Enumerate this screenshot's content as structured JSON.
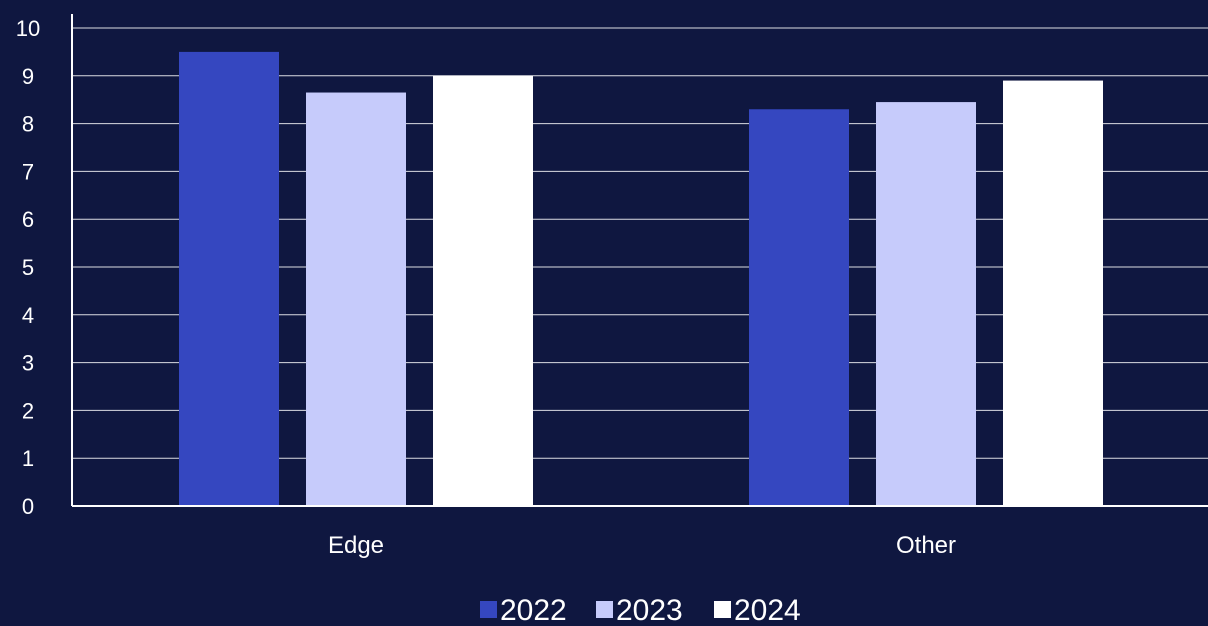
{
  "chart_data": {
    "type": "bar",
    "categories": [
      "Edge",
      "Other"
    ],
    "series": [
      {
        "name": "2022",
        "values": [
          9.5,
          8.3
        ]
      },
      {
        "name": "2023",
        "values": [
          8.65,
          8.45
        ]
      },
      {
        "name": "2024",
        "values": [
          9.0,
          8.9
        ]
      }
    ],
    "title": "",
    "xlabel": "",
    "ylabel": "",
    "ylim": [
      0,
      10
    ],
    "yticks": [
      0,
      1,
      2,
      3,
      4,
      5,
      6,
      7,
      8,
      9,
      10
    ],
    "grid": true,
    "legend": "bottom",
    "colors": {
      "background": "#0f1740",
      "series": [
        "#3547c0",
        "#c6cbfb",
        "#ffffff"
      ],
      "grid": "#ffffff",
      "text": "#ffffff"
    }
  }
}
